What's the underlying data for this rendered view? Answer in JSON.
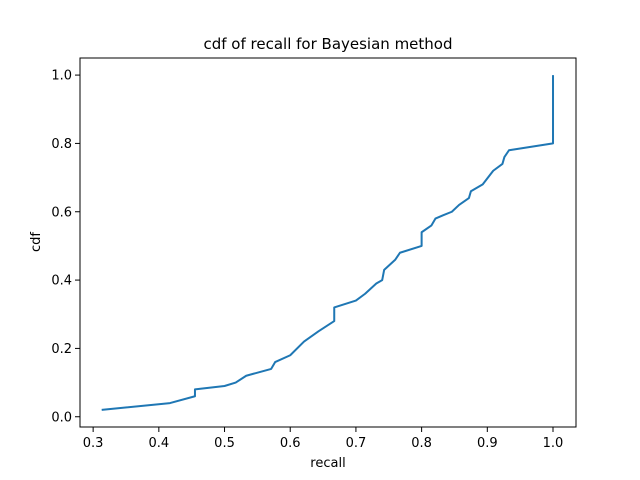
{
  "chart_data": {
    "type": "line",
    "title": "cdf of recall for Bayesian method",
    "xlabel": "recall",
    "ylabel": "cdf",
    "xlim": [
      0.28,
      1.035
    ],
    "ylim": [
      -0.03,
      1.05
    ],
    "xticks": [
      0.3,
      0.4,
      0.5,
      0.6,
      0.7,
      0.8,
      0.9,
      1.0
    ],
    "xtick_labels": [
      "0.3",
      "0.4",
      "0.5",
      "0.6",
      "0.7",
      "0.8",
      "0.9",
      "1.0"
    ],
    "yticks": [
      0.0,
      0.2,
      0.4,
      0.6,
      0.8,
      1.0
    ],
    "ytick_labels": [
      "0.0",
      "0.2",
      "0.4",
      "0.6",
      "0.8",
      "1.0"
    ],
    "grid": false,
    "legend": "none",
    "color": "#1f77b4",
    "series": [
      {
        "x": [
          0.313,
          0.417,
          0.455,
          0.455,
          0.5,
          0.517,
          0.533,
          0.571,
          0.577,
          0.6,
          0.621,
          0.643,
          0.667,
          0.667,
          0.7,
          0.714,
          0.731,
          0.74,
          0.743,
          0.76,
          0.767,
          0.8,
          0.8,
          0.815,
          0.821,
          0.833,
          0.846,
          0.857,
          0.872,
          0.875,
          0.893,
          0.905,
          0.909,
          0.923,
          0.926,
          0.933,
          1.0,
          1.0
        ],
        "y": [
          0.02,
          0.04,
          0.06,
          0.08,
          0.09,
          0.1,
          0.12,
          0.14,
          0.16,
          0.18,
          0.22,
          0.25,
          0.28,
          0.32,
          0.34,
          0.36,
          0.39,
          0.4,
          0.43,
          0.46,
          0.48,
          0.5,
          0.54,
          0.56,
          0.58,
          0.59,
          0.6,
          0.62,
          0.64,
          0.66,
          0.68,
          0.71,
          0.72,
          0.74,
          0.76,
          0.78,
          0.8,
          1.0
        ]
      }
    ]
  }
}
